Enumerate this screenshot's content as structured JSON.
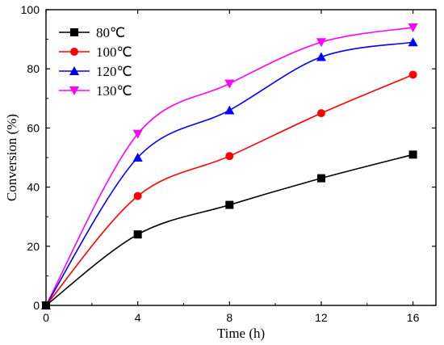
{
  "chart_data": {
    "type": "line",
    "title": "",
    "xlabel": "Time (h)",
    "ylabel": "Conversion (%)",
    "x": [
      0,
      4,
      8,
      12,
      16
    ],
    "xlim": [
      0,
      17
    ],
    "ylim": [
      0,
      100
    ],
    "xticks": [
      0,
      4,
      8,
      12,
      16
    ],
    "yticks": [
      0,
      20,
      40,
      60,
      80,
      100
    ],
    "grid": false,
    "legend_position": "top-left",
    "series": [
      {
        "name": "80℃",
        "values": [
          0,
          24,
          34,
          43,
          51
        ],
        "color": "#000000",
        "marker": "square"
      },
      {
        "name": "100℃",
        "values": [
          0,
          37,
          50.5,
          65,
          78
        ],
        "color": "#ff0000",
        "marker": "circle"
      },
      {
        "name": "120℃",
        "values": [
          0,
          50,
          66,
          84,
          89
        ],
        "color": "#0000ff",
        "marker": "triangle-up"
      },
      {
        "name": "130℃",
        "values": [
          0,
          58,
          75,
          89,
          94
        ],
        "color": "#ff00ff",
        "marker": "triangle-down"
      }
    ]
  }
}
